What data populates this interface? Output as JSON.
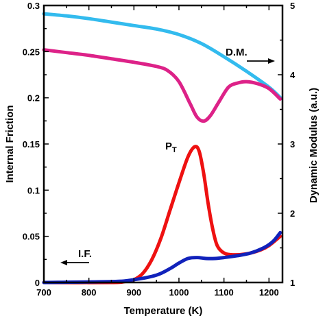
{
  "chart_data": {
    "type": "line",
    "xlabel": "Temperature (K)",
    "ylabel_left": "Internal Friction",
    "ylabel_right": "Dynamic Modulus (a.u.)",
    "xlim": [
      700,
      1230
    ],
    "ylim_left": [
      0,
      0.3
    ],
    "ylim_right": [
      1,
      5
    ],
    "x_ticks": [
      700,
      800,
      900,
      1000,
      1100,
      1200
    ],
    "y_left_ticks": [
      0,
      0.05,
      0.1,
      0.15,
      0.2,
      0.25,
      0.3
    ],
    "y_left_tick_labels": [
      "0",
      "0.05",
      "0.1",
      "0.15",
      "0.2",
      "0.25",
      "0.3"
    ],
    "y_right_ticks": [
      1,
      2,
      3,
      4,
      5
    ],
    "grid": false,
    "series": [
      {
        "axis": "right",
        "color": "#33bbee",
        "x": [
          700,
          750,
          800,
          850,
          900,
          950,
          1000,
          1050,
          1100,
          1150,
          1200,
          1225
        ],
        "y": [
          4.88,
          4.85,
          4.81,
          4.76,
          4.71,
          4.66,
          4.58,
          4.45,
          4.26,
          4.05,
          3.82,
          3.67
        ]
      },
      {
        "axis": "right",
        "color": "#dd2288",
        "x": [
          700,
          750,
          800,
          850,
          900,
          950,
          975,
          1000,
          1025,
          1040,
          1055,
          1070,
          1090,
          1110,
          1130,
          1150,
          1175,
          1200,
          1225
        ],
        "y": [
          4.36,
          4.32,
          4.28,
          4.23,
          4.18,
          4.12,
          4.06,
          3.9,
          3.58,
          3.39,
          3.33,
          3.41,
          3.62,
          3.82,
          3.88,
          3.9,
          3.87,
          3.8,
          3.65
        ]
      },
      {
        "axis": "left",
        "color": "#ee1111",
        "x": [
          700,
          850,
          880,
          900,
          920,
          940,
          960,
          980,
          1000,
          1020,
          1035,
          1045,
          1055,
          1065,
          1075,
          1085,
          1100,
          1120,
          1150,
          1180,
          1200,
          1225
        ],
        "y": [
          0.0,
          0.0,
          0.001,
          0.003,
          0.01,
          0.025,
          0.048,
          0.078,
          0.108,
          0.136,
          0.147,
          0.142,
          0.118,
          0.085,
          0.058,
          0.04,
          0.032,
          0.03,
          0.031,
          0.035,
          0.04,
          0.05
        ]
      },
      {
        "axis": "left",
        "color": "#1122bb",
        "x": [
          700,
          850,
          900,
          950,
          980,
          1000,
          1020,
          1040,
          1060,
          1080,
          1100,
          1130,
          1160,
          1190,
          1210,
          1225
        ],
        "y": [
          0.0,
          0.001,
          0.003,
          0.008,
          0.015,
          0.021,
          0.026,
          0.027,
          0.026,
          0.026,
          0.027,
          0.029,
          0.032,
          0.038,
          0.045,
          0.054
        ]
      }
    ],
    "annotations": {
      "pt_main": "P",
      "pt_sub": "T",
      "dm": "D.M.",
      "if": "I.F."
    }
  }
}
